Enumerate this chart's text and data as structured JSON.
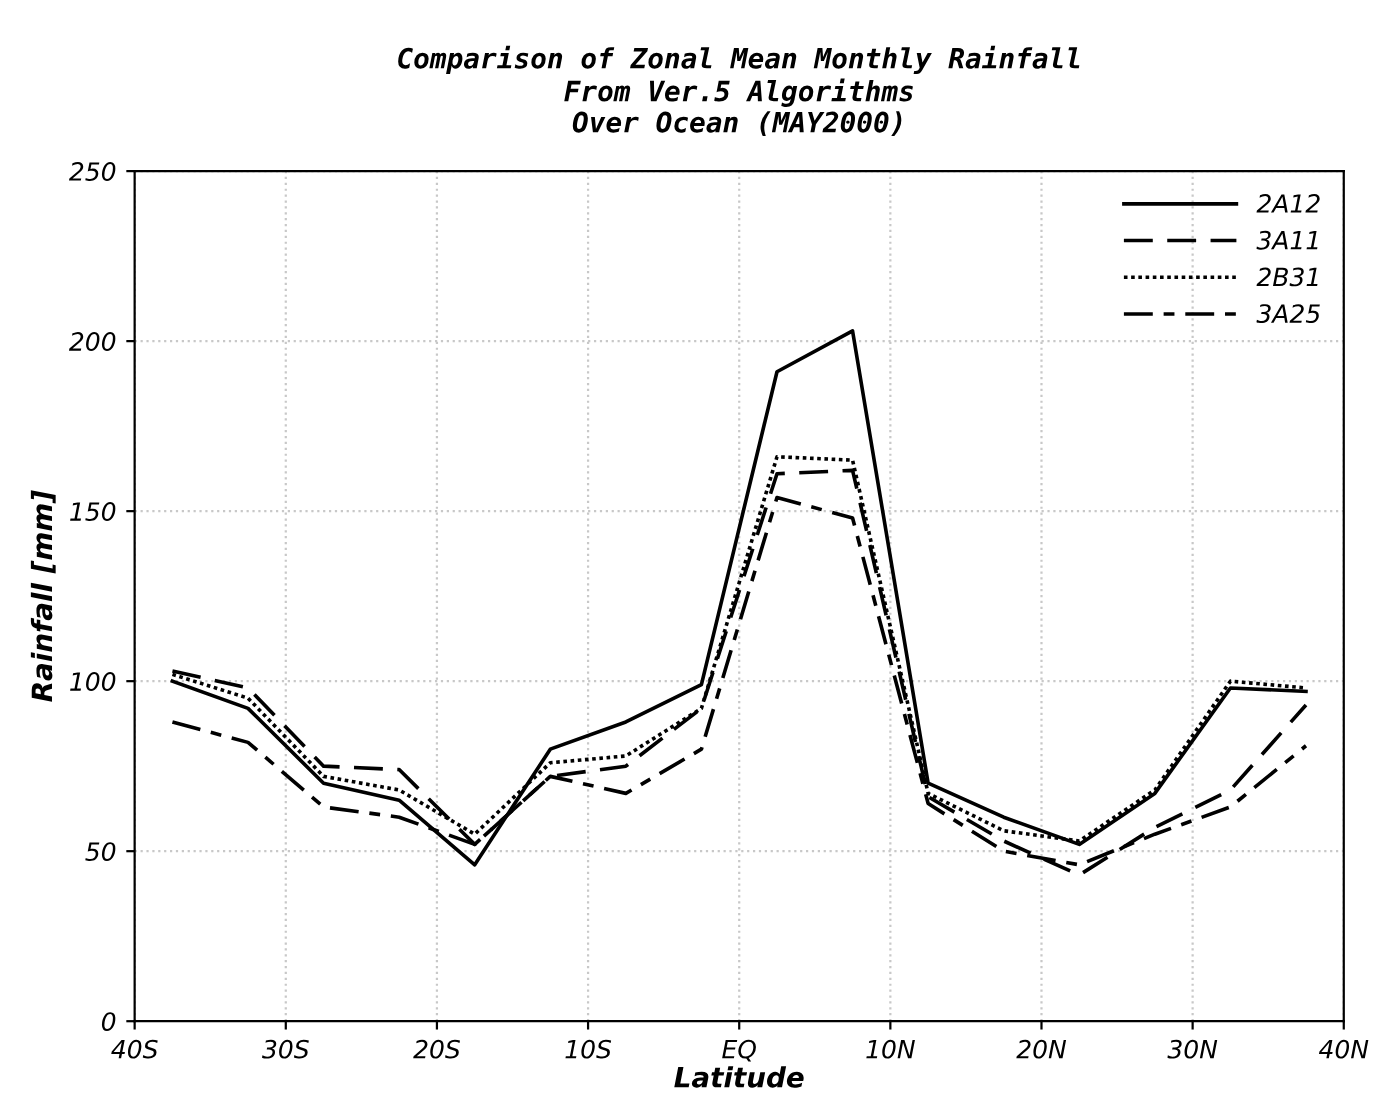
{
  "chart_data": {
    "type": "line",
    "title": "Comparison of Zonal Mean Monthly Rainfall\nFrom Ver.5 Algorithms\nOver Ocean (MAY2000)",
    "xlabel": "Latitude",
    "ylabel": "Rainfall [mm]",
    "x": [
      -37.5,
      -32.5,
      -27.5,
      -22.5,
      -17.5,
      -12.5,
      -7.5,
      -2.5,
      2.5,
      7.5,
      12.5,
      17.5,
      22.5,
      27.5,
      32.5,
      37.5
    ],
    "series": [
      {
        "name": "2A12",
        "color": "#000000",
        "line_style": "solid",
        "values": [
          100,
          92,
          70,
          65,
          46,
          80,
          88,
          99,
          191,
          203,
          70,
          60,
          52,
          67,
          98,
          97
        ]
      },
      {
        "name": "3A11",
        "color": "#000000",
        "line_style": "dashed",
        "values": [
          103,
          98,
          75,
          74,
          52,
          72,
          75,
          92,
          161,
          162,
          66,
          53,
          43,
          57,
          68,
          93
        ]
      },
      {
        "name": "2B31",
        "color": "#000000",
        "line_style": "dotted",
        "values": [
          102,
          95,
          72,
          68,
          55,
          76,
          78,
          92,
          166,
          165,
          67,
          56,
          53,
          68,
          100,
          98
        ]
      },
      {
        "name": "3A25",
        "color": "#000000",
        "line_style": "dashdot",
        "values": [
          88,
          82,
          63,
          60,
          52,
          72,
          67,
          80,
          154,
          148,
          64,
          50,
          46,
          55,
          63,
          81
        ]
      }
    ],
    "xlim": [
      -40,
      40
    ],
    "xticks": [
      {
        "value": -40,
        "label": "40S"
      },
      {
        "value": -30,
        "label": "30S"
      },
      {
        "value": -20,
        "label": "20S"
      },
      {
        "value": -10,
        "label": "10S"
      },
      {
        "value": 0,
        "label": "EQ"
      },
      {
        "value": 10,
        "label": "10N"
      },
      {
        "value": 20,
        "label": "20N"
      },
      {
        "value": 30,
        "label": "30N"
      },
      {
        "value": 40,
        "label": "40N"
      }
    ],
    "ylim": [
      0,
      250
    ],
    "yticks": [
      0,
      50,
      100,
      150,
      200,
      250
    ],
    "grid": true,
    "legend": "top right"
  }
}
